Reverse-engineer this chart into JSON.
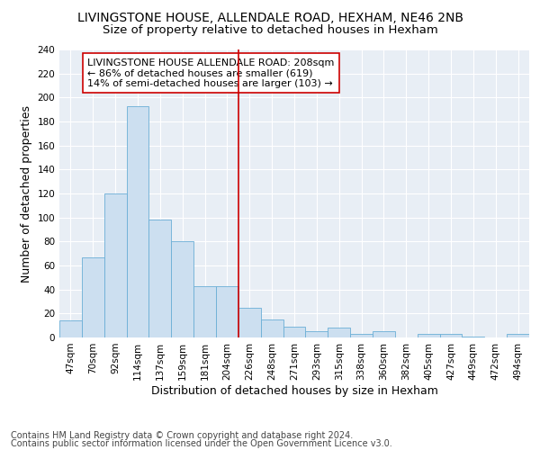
{
  "title": "LIVINGSTONE HOUSE, ALLENDALE ROAD, HEXHAM, NE46 2NB",
  "subtitle": "Size of property relative to detached houses in Hexham",
  "xlabel": "Distribution of detached houses by size in Hexham",
  "ylabel": "Number of detached properties",
  "footnote1": "Contains HM Land Registry data © Crown copyright and database right 2024.",
  "footnote2": "Contains public sector information licensed under the Open Government Licence v3.0.",
  "bar_labels": [
    "47sqm",
    "70sqm",
    "92sqm",
    "114sqm",
    "137sqm",
    "159sqm",
    "181sqm",
    "204sqm",
    "226sqm",
    "248sqm",
    "271sqm",
    "293sqm",
    "315sqm",
    "338sqm",
    "360sqm",
    "382sqm",
    "405sqm",
    "427sqm",
    "449sqm",
    "472sqm",
    "494sqm"
  ],
  "bar_values": [
    14,
    67,
    120,
    193,
    98,
    80,
    43,
    43,
    25,
    15,
    9,
    5,
    8,
    3,
    5,
    0,
    3,
    3,
    1,
    0,
    3
  ],
  "bar_color": "#ccdff0",
  "bar_edgecolor": "#6aaed6",
  "vline_x": 7.5,
  "vline_color": "#cc0000",
  "annotation_text": "LIVINGSTONE HOUSE ALLENDALE ROAD: 208sqm\n← 86% of detached houses are smaller (619)\n14% of semi-detached houses are larger (103) →",
  "annotation_box_edgecolor": "#cc0000",
  "annotation_box_facecolor": "#ffffff",
  "ylim": [
    0,
    240
  ],
  "yticks": [
    0,
    20,
    40,
    60,
    80,
    100,
    120,
    140,
    160,
    180,
    200,
    220,
    240
  ],
  "background_color": "#e8eef5",
  "grid_color": "#ffffff",
  "title_fontsize": 10,
  "subtitle_fontsize": 9.5,
  "axis_label_fontsize": 9,
  "tick_fontsize": 7.5,
  "footnote_fontsize": 7,
  "annotation_fontsize": 8
}
